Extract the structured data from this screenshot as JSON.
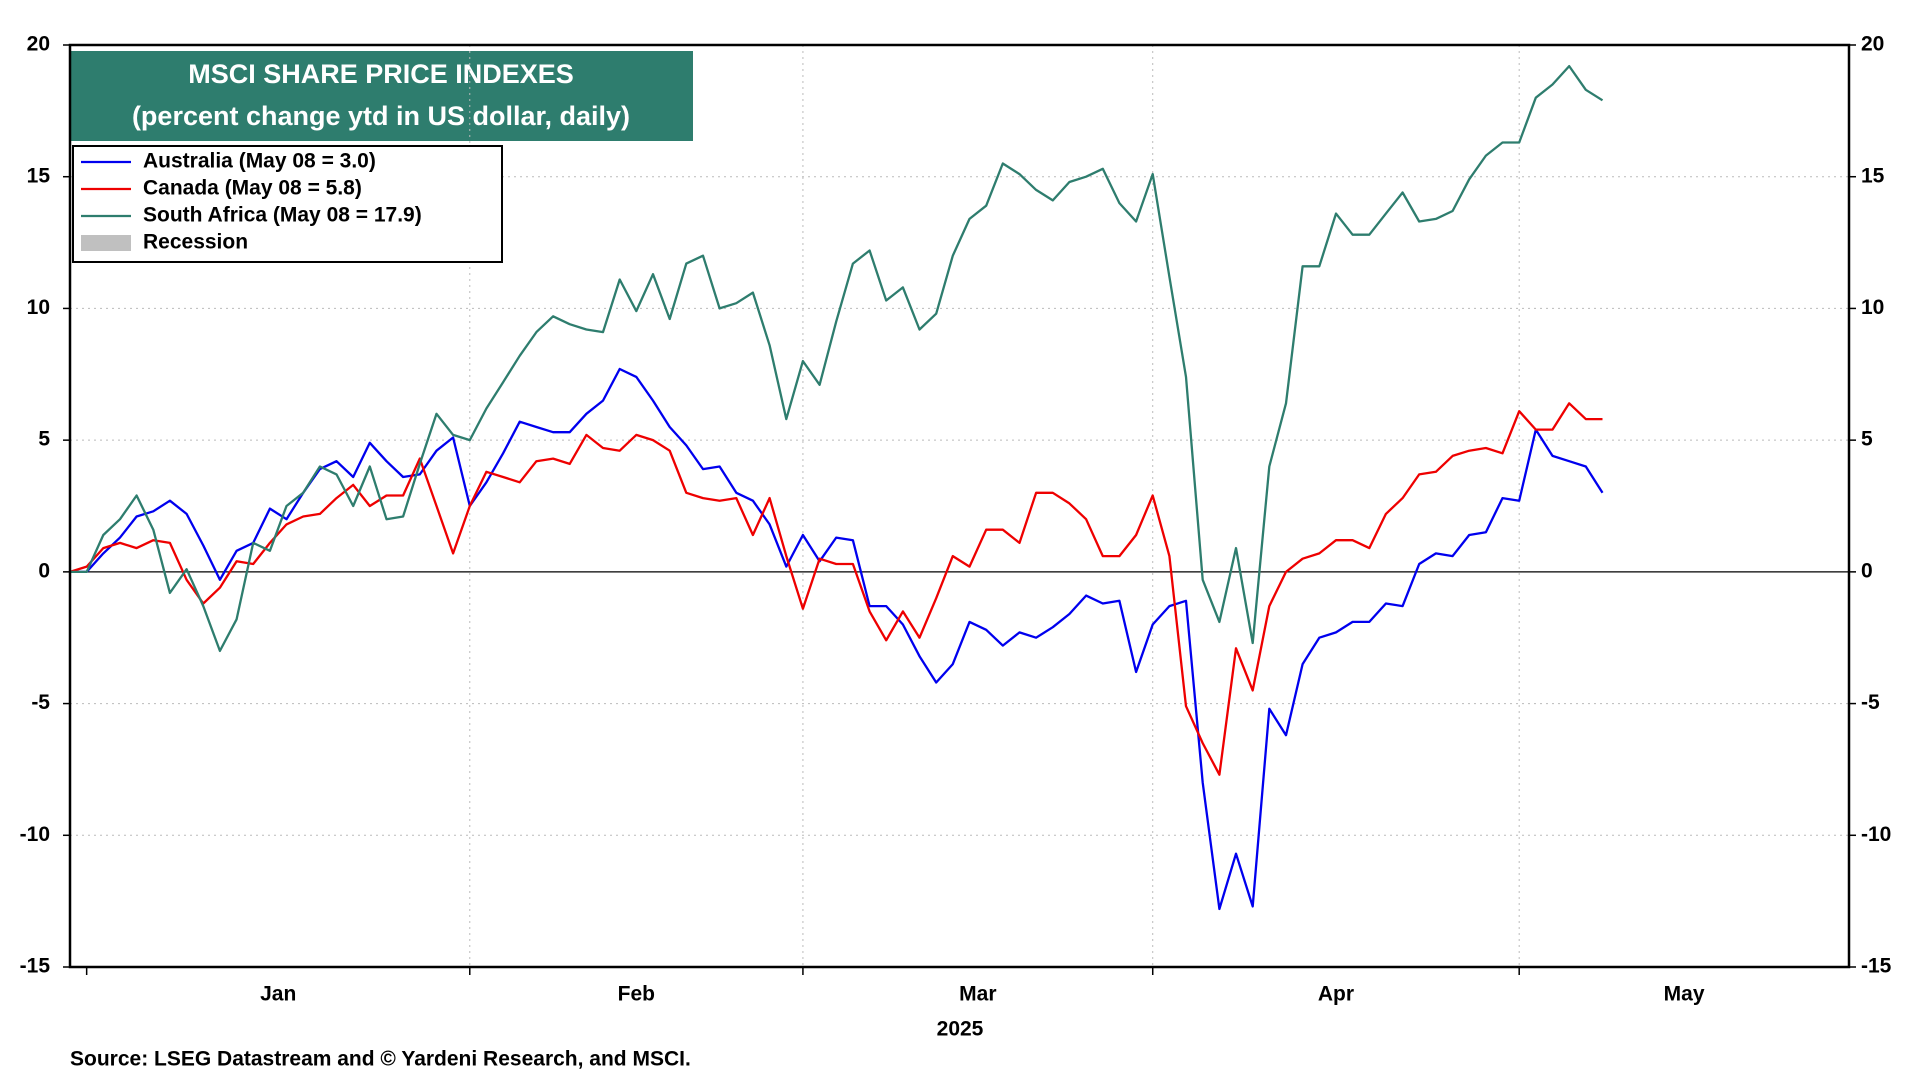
{
  "chart_data": {
    "type": "line",
    "title": "MSCI SHARE PRICE INDEXES",
    "subtitle": "(percent change ytd in US dollar, daily)",
    "xlabel": "2025",
    "source": "Source: LSEG Datastream and © Yardeni Research, and MSCI.",
    "recession_label": "Recession",
    "categories": [
      null,
      "Jan",
      null,
      null,
      null,
      null,
      null,
      null,
      null,
      null,
      null,
      null,
      null,
      null,
      null,
      null,
      null,
      null,
      null,
      null,
      null,
      null,
      null,
      null,
      "Feb",
      null,
      null,
      null,
      null,
      null,
      null,
      null,
      null,
      null,
      null,
      null,
      null,
      null,
      null,
      null,
      null,
      null,
      null,
      null,
      "Mar",
      null,
      null,
      null,
      null,
      null,
      null,
      null,
      null,
      null,
      null,
      null,
      null,
      null,
      null,
      null,
      null,
      null,
      null,
      null,
      null,
      "Apr",
      null,
      null,
      null,
      null,
      null,
      null,
      null,
      null,
      null,
      null,
      null,
      null,
      null,
      null,
      null,
      null,
      null,
      null,
      null,
      null,
      null,
      "May",
      null,
      null,
      null,
      null,
      null
    ],
    "series": [
      {
        "name": "Australia (May 08 = 3.0)",
        "color": "#0000ee",
        "values": [
          0,
          0,
          0.7,
          1.3,
          2.1,
          2.3,
          2.7,
          2.2,
          1.0,
          -0.3,
          0.8,
          1.1,
          2.4,
          2.0,
          3.0,
          3.9,
          4.2,
          3.6,
          4.9,
          4.2,
          3.6,
          3.7,
          4.6,
          5.1,
          2.5,
          3.4,
          4.5,
          5.7,
          5.5,
          5.3,
          5.3,
          6.0,
          6.5,
          7.7,
          7.4,
          6.5,
          5.5,
          4.8,
          3.9,
          4.0,
          3.0,
          2.7,
          1.8,
          0.2,
          1.4,
          0.4,
          1.3,
          1.2,
          -1.3,
          -1.3,
          -2.0,
          -3.2,
          -4.2,
          -3.5,
          -1.9,
          -2.2,
          -2.8,
          -2.3,
          -2.5,
          -2.1,
          -1.6,
          -0.9,
          -1.2,
          -1.1,
          -3.8,
          -2.0,
          -1.3,
          -1.1,
          -8.0,
          -12.8,
          -10.7,
          -12.7,
          -5.2,
          -6.2,
          -3.5,
          -2.5,
          -2.3,
          -1.9,
          -1.9,
          -1.2,
          -1.3,
          0.3,
          0.7,
          0.6,
          1.4,
          1.5,
          2.8,
          2.7,
          5.4,
          4.4,
          4.2,
          4.0,
          3.0
        ]
      },
      {
        "name": "Canada (May 08 = 5.8)",
        "color": "#ee0000",
        "values": [
          0,
          0.2,
          0.9,
          1.1,
          0.9,
          1.2,
          1.1,
          -0.3,
          -1.2,
          -0.6,
          0.4,
          0.3,
          1.1,
          1.8,
          2.1,
          2.2,
          2.8,
          3.3,
          2.5,
          2.9,
          2.9,
          4.3,
          2.5,
          0.7,
          2.5,
          3.8,
          3.6,
          3.4,
          4.2,
          4.3,
          4.1,
          5.2,
          4.7,
          4.6,
          5.2,
          5.0,
          4.6,
          3.0,
          2.8,
          2.7,
          2.8,
          1.4,
          2.8,
          0.6,
          -1.4,
          0.5,
          0.3,
          0.3,
          -1.5,
          -2.6,
          -1.5,
          -2.5,
          -1.0,
          0.6,
          0.2,
          1.6,
          1.6,
          1.1,
          3.0,
          3.0,
          2.6,
          2.0,
          0.6,
          0.6,
          1.4,
          2.9,
          0.6,
          -5.1,
          -6.5,
          -7.7,
          -2.9,
          -4.5,
          -1.3,
          0,
          0.5,
          0.7,
          1.2,
          1.2,
          0.9,
          2.2,
          2.8,
          3.7,
          3.8,
          4.4,
          4.6,
          4.7,
          4.5,
          6.1,
          5.4,
          5.4,
          6.4,
          5.8,
          5.8
        ]
      },
      {
        "name": "South Africa (May 08 = 17.9)",
        "color": "#2e7d6e",
        "values": [
          0,
          0,
          1.4,
          2.0,
          2.9,
          1.6,
          -0.8,
          0.1,
          -1.3,
          -3.0,
          -1.8,
          1.1,
          0.8,
          2.5,
          3.0,
          4.0,
          3.7,
          2.5,
          4.0,
          2.0,
          2.1,
          4.1,
          6.0,
          5.2,
          5.0,
          6.2,
          7.2,
          8.2,
          9.1,
          9.7,
          9.4,
          9.2,
          9.1,
          11.1,
          9.9,
          11.3,
          9.6,
          11.7,
          12.0,
          10.0,
          10.2,
          10.6,
          8.6,
          5.8,
          8.0,
          7.1,
          9.5,
          11.7,
          12.2,
          10.3,
          10.8,
          9.2,
          9.8,
          12.0,
          13.4,
          13.9,
          15.5,
          15.1,
          14.5,
          14.1,
          14.8,
          15.0,
          15.3,
          14.0,
          13.3,
          15.1,
          11.2,
          7.4,
          -0.3,
          -1.9,
          0.9,
          -2.7,
          4.0,
          6.4,
          11.6,
          11.6,
          13.6,
          12.8,
          12.8,
          13.6,
          14.4,
          13.3,
          13.4,
          13.7,
          14.9,
          15.8,
          16.3,
          16.3,
          18.0,
          18.5,
          19.2,
          18.3,
          17.9
        ]
      }
    ],
    "ylim": [
      -15,
      20
    ],
    "yticks": [
      -15,
      -10,
      -5,
      0,
      5,
      10,
      15,
      20
    ],
    "grid": true
  }
}
